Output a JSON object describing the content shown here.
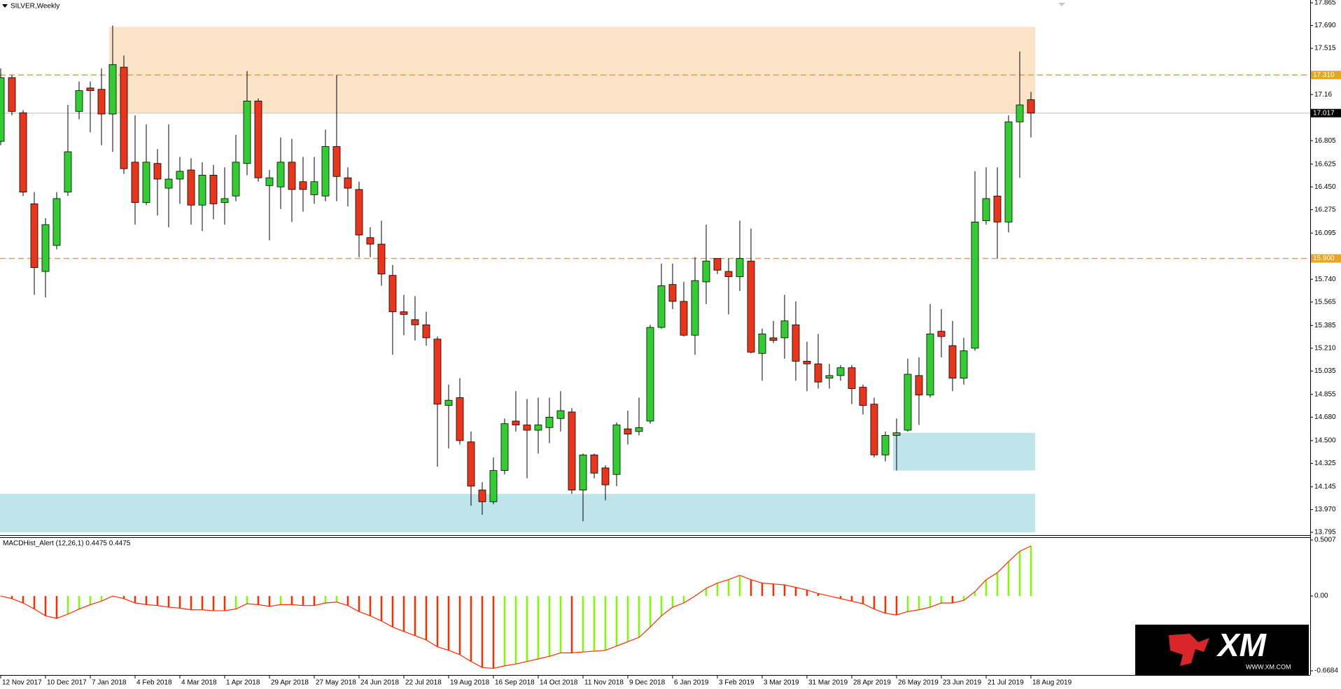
{
  "chart_data": [
    {
      "type": "candlestick",
      "title": "SILVER,Weekly",
      "categories": [
        "12 Nov 2017",
        null,
        null,
        null,
        "10 Dec 2017",
        null,
        null,
        null,
        "7 Jan 2018",
        null,
        null,
        null,
        "4 Feb 2018",
        null,
        null,
        null,
        "4 Mar 2018",
        null,
        null,
        null,
        "1 Apr 2018",
        null,
        null,
        null,
        "29 Apr 2018",
        null,
        null,
        null,
        "27 May 2018",
        null,
        null,
        null,
        "24 Jun 2018",
        null,
        null,
        null,
        "22 Jul 2018",
        null,
        null,
        null,
        "19 Aug 2018",
        null,
        null,
        null,
        "16 Sep 2018",
        null,
        null,
        null,
        "14 Oct 2018",
        null,
        null,
        null,
        "11 Nov 2018",
        null,
        null,
        null,
        "9 Dec 2018",
        null,
        null,
        null,
        "6 Jan 2019",
        null,
        null,
        null,
        "3 Feb 2019",
        null,
        null,
        null,
        "3 Mar 2019",
        null,
        null,
        null,
        "31 Mar 2019",
        null,
        null,
        null,
        "28 Apr 2019",
        null,
        null,
        null,
        "26 May 2019",
        null,
        null,
        null,
        "23 Jun 2019",
        null,
        null,
        null,
        "21 Jul 2019",
        null,
        null,
        null,
        "18 Aug 2019"
      ],
      "open": [
        16.8,
        17.29,
        17.02,
        16.32,
        15.8,
        16.0,
        16.41,
        17.03,
        17.21,
        17.2,
        17.01,
        17.37,
        16.64,
        16.33,
        16.63,
        16.44,
        16.51,
        16.58,
        16.31,
        16.54,
        16.33,
        16.38,
        16.63,
        17.11,
        16.46,
        16.45,
        16.64,
        16.49,
        16.39,
        16.38,
        16.76,
        16.52,
        16.43,
        16.06,
        16.01,
        15.77,
        15.49,
        15.43,
        15.39,
        15.28,
        14.77,
        14.83,
        14.49,
        14.12,
        14.03,
        14.27,
        14.65,
        14.62,
        14.58,
        14.6,
        14.67,
        14.72,
        14.12,
        14.39,
        14.29,
        14.24,
        14.59,
        14.57,
        14.65,
        15.37,
        15.7,
        15.57,
        15.31,
        15.72,
        15.9,
        15.8,
        15.76,
        15.88,
        15.17,
        15.29,
        15.29,
        15.39,
        15.11,
        15.09,
        14.98,
        15.0,
        15.06,
        14.91,
        14.78,
        14.39,
        14.54,
        14.58,
        15.0,
        14.85,
        15.34,
        15.23,
        14.98,
        15.21,
        16.19,
        16.38,
        16.18,
        16.95,
        17.12
      ],
      "high": [
        17.36,
        17.31,
        17.04,
        16.41,
        16.21,
        16.41,
        17.08,
        17.26,
        17.26,
        17.36,
        17.69,
        17.46,
        17.0,
        16.93,
        16.74,
        16.93,
        16.68,
        16.67,
        16.64,
        16.62,
        16.6,
        16.85,
        17.34,
        17.13,
        16.58,
        16.83,
        16.82,
        16.68,
        16.68,
        16.89,
        17.31,
        16.6,
        16.49,
        16.14,
        16.19,
        15.85,
        15.62,
        15.61,
        15.49,
        15.3,
        14.93,
        14.98,
        14.57,
        14.18,
        14.37,
        14.67,
        14.88,
        14.82,
        14.83,
        14.83,
        14.88,
        14.75,
        14.4,
        14.4,
        14.31,
        14.64,
        14.73,
        14.83,
        15.39,
        15.86,
        15.86,
        15.72,
        15.91,
        16.16,
        15.9,
        15.9,
        16.19,
        16.13,
        15.36,
        15.42,
        15.62,
        15.57,
        15.26,
        15.32,
        15.09,
        15.08,
        15.08,
        14.93,
        14.83,
        14.57,
        14.67,
        15.13,
        15.14,
        15.55,
        15.51,
        15.42,
        15.29,
        16.57,
        16.6,
        16.6,
        17.0,
        17.49,
        17.18
      ],
      "low": [
        16.77,
        17.0,
        16.38,
        15.62,
        15.6,
        15.97,
        16.38,
        16.97,
        16.87,
        16.77,
        16.72,
        16.55,
        16.16,
        16.31,
        16.23,
        16.14,
        16.32,
        16.16,
        16.11,
        16.2,
        16.16,
        16.34,
        16.54,
        16.49,
        16.04,
        16.28,
        16.18,
        16.26,
        16.32,
        16.34,
        16.34,
        16.3,
        15.91,
        15.91,
        15.69,
        15.16,
        15.31,
        15.27,
        15.23,
        14.3,
        14.44,
        14.47,
        14.0,
        13.93,
        14.01,
        14.24,
        14.57,
        14.21,
        14.4,
        14.48,
        14.57,
        14.09,
        13.88,
        14.21,
        14.04,
        14.15,
        14.47,
        14.54,
        14.63,
        15.36,
        15.51,
        15.3,
        15.16,
        15.55,
        15.78,
        15.47,
        15.65,
        15.17,
        14.96,
        15.25,
        15.13,
        14.96,
        14.88,
        14.9,
        14.9,
        14.96,
        14.78,
        14.7,
        14.37,
        14.34,
        14.27,
        14.57,
        14.62,
        14.83,
        15.14,
        14.88,
        14.93,
        15.19,
        16.16,
        15.9,
        16.1,
        16.52,
        16.83
      ],
      "close": [
        17.29,
        17.03,
        16.41,
        15.83,
        16.16,
        16.36,
        16.72,
        17.19,
        17.19,
        17.01,
        17.39,
        16.59,
        16.33,
        16.64,
        16.51,
        16.51,
        16.57,
        16.31,
        16.54,
        16.32,
        16.36,
        16.64,
        17.11,
        16.52,
        16.52,
        16.64,
        16.43,
        16.43,
        16.49,
        16.76,
        16.53,
        16.44,
        16.08,
        16.01,
        15.78,
        15.49,
        15.47,
        15.39,
        15.29,
        14.78,
        14.81,
        14.5,
        14.15,
        14.03,
        14.27,
        14.63,
        14.62,
        14.58,
        14.62,
        14.68,
        14.73,
        14.12,
        14.39,
        14.25,
        14.16,
        14.62,
        14.55,
        14.6,
        15.37,
        15.69,
        15.57,
        15.31,
        15.73,
        15.88,
        15.81,
        15.76,
        15.9,
        15.18,
        15.32,
        15.27,
        15.42,
        15.11,
        15.09,
        14.95,
        15.0,
        15.06,
        14.9,
        14.77,
        14.39,
        14.54,
        14.56,
        15.01,
        14.85,
        15.32,
        15.3,
        14.98,
        15.19,
        16.18,
        16.36,
        16.18,
        16.95,
        17.08,
        17.017
      ],
      "up_color": "#32cd32",
      "down_color": "#e8361c",
      "ylim": [
        13.795,
        17.865
      ],
      "yticks": [
        17.865,
        {
          "value": 17.69,
          "label": "17.690"
        },
        17.515,
        17.16,
        16.805,
        16.625,
        {
          "value": 16.45,
          "label": "16.450"
        },
        16.275,
        16.095,
        {
          "value": 15.74,
          "label": "15.740"
        },
        15.565,
        15.385,
        {
          "value": 15.21,
          "label": "15.210"
        },
        15.035,
        14.855,
        {
          "value": 14.68,
          "label": "14.680"
        },
        {
          "value": 14.5,
          "label": "14.500"
        },
        14.325,
        14.145,
        {
          "value": 13.97,
          "label": "13.970"
        },
        13.795
      ],
      "levels": [
        {
          "value": 17.31,
          "label": "17.310",
          "color": "#e2a628"
        },
        {
          "value": 15.9,
          "label": "15.900",
          "color": "#e2a628"
        }
      ],
      "last_price": {
        "value": 17.017,
        "label": "17.017"
      },
      "zones": [
        {
          "from": 10,
          "to": 92,
          "low": 17.02,
          "high": 17.68,
          "color": "#fae3c6"
        },
        {
          "from": 80,
          "to": 92,
          "low": 14.27,
          "high": 14.56,
          "color": "#bfe5eb"
        },
        {
          "from": 0,
          "to": 92,
          "low": 13.795,
          "high": 14.09,
          "color": "#bfe5eb"
        }
      ]
    },
    {
      "type": "histogram",
      "title": "MACDHist_Alert (12,26,1) 0.4475 0.4475",
      "values": [
        0,
        -0.023,
        -0.062,
        -0.116,
        -0.177,
        -0.2,
        -0.162,
        -0.116,
        -0.077,
        -0.046,
        0,
        -0.023,
        -0.062,
        -0.077,
        -0.085,
        -0.1,
        -0.108,
        -0.123,
        -0.123,
        -0.131,
        -0.131,
        -0.116,
        -0.069,
        -0.077,
        -0.092,
        -0.077,
        -0.077,
        -0.085,
        -0.085,
        -0.062,
        -0.054,
        -0.085,
        -0.139,
        -0.177,
        -0.223,
        -0.277,
        -0.316,
        -0.354,
        -0.393,
        -0.454,
        -0.485,
        -0.524,
        -0.585,
        -0.639,
        -0.647,
        -0.624,
        -0.608,
        -0.585,
        -0.562,
        -0.539,
        -0.508,
        -0.508,
        -0.5,
        -0.493,
        -0.485,
        -0.447,
        -0.408,
        -0.37,
        -0.277,
        -0.177,
        -0.1,
        -0.062,
        0,
        0.069,
        0.116,
        0.146,
        0.185,
        0.146,
        0.116,
        0.108,
        0.1,
        0.077,
        0.054,
        0.023,
        0,
        -0.023,
        -0.046,
        -0.069,
        -0.116,
        -0.154,
        -0.169,
        -0.139,
        -0.123,
        -0.1,
        -0.062,
        -0.062,
        -0.039,
        0.039,
        0.146,
        0.208,
        0.308,
        0.4,
        0.4475
      ],
      "up_color": "#7cfc00",
      "down_color": "#ff2a00",
      "line_color": "#ff2a00",
      "ylim": [
        -0.6684,
        0.5007
      ],
      "yticks": [
        0.5007,
        {
          "value": 0,
          "label": "0.00"
        },
        -0.6684
      ]
    }
  ],
  "watermark": {
    "brand": "XM",
    "url": "WWW.XM.COM"
  }
}
